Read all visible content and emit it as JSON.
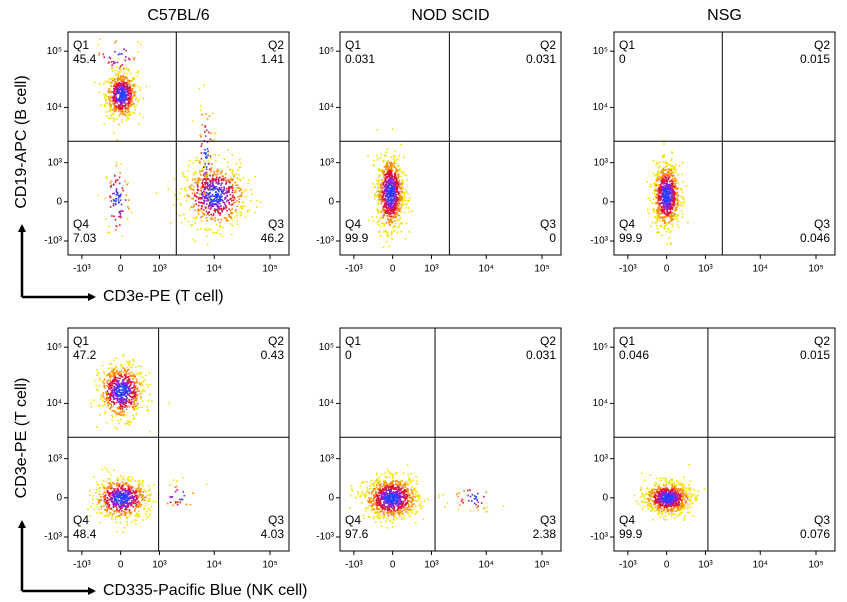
{
  "columns": [
    "C57BL/6",
    "NOD SCID",
    "NSG"
  ],
  "axis_ticks": [
    {
      "value": -1000,
      "label": "-10³"
    },
    0,
    {
      "value": 1000,
      "label": "10³"
    },
    {
      "value": 10000,
      "label": "10⁴"
    },
    {
      "value": 100000,
      "label": "10⁵"
    }
  ],
  "rows": [
    {
      "y_label": "CD19-APC (B cell)",
      "x_label": "CD3e-PE (T cell)",
      "panels": [
        {
          "quadrants": [
            {
              "name": "Q1",
              "value": 45.4
            },
            {
              "name": "Q2",
              "value": 1.41
            },
            {
              "name": "Q3",
              "value": 46.2
            },
            {
              "name": "Q4",
              "value": 7.03
            }
          ]
        },
        {
          "quadrants": [
            {
              "name": "Q1",
              "value": 0.031
            },
            {
              "name": "Q2",
              "value": 0.031
            },
            {
              "name": "Q3",
              "value": 0
            },
            {
              "name": "Q4",
              "value": 99.9
            }
          ]
        },
        {
          "quadrants": [
            {
              "name": "Q1",
              "value": 0
            },
            {
              "name": "Q2",
              "value": 0.015
            },
            {
              "name": "Q3",
              "value": 0.046
            },
            {
              "name": "Q4",
              "value": 99.9
            }
          ]
        }
      ]
    },
    {
      "y_label": "CD3e-PE (T cell)",
      "x_label": "CD335-Pacific Blue (NK cell)",
      "panels": [
        {
          "quadrants": [
            {
              "name": "Q1",
              "value": 47.2
            },
            {
              "name": "Q2",
              "value": 0.43
            },
            {
              "name": "Q3",
              "value": 4.03
            },
            {
              "name": "Q4",
              "value": 48.4
            }
          ]
        },
        {
          "quadrants": [
            {
              "name": "Q1",
              "value": 0
            },
            {
              "name": "Q2",
              "value": 0.031
            },
            {
              "name": "Q3",
              "value": 2.38
            },
            {
              "name": "Q4",
              "value": 97.6
            }
          ]
        },
        {
          "quadrants": [
            {
              "name": "Q1",
              "value": 0.046
            },
            {
              "name": "Q2",
              "value": 0.015
            },
            {
              "name": "Q3",
              "value": 0.076
            },
            {
              "name": "Q4",
              "value": 99.9
            }
          ]
        }
      ]
    }
  ]
}
